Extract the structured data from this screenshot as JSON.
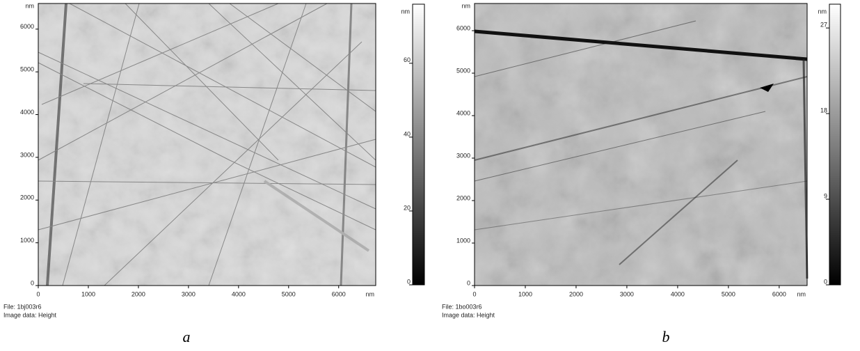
{
  "panels": [
    {
      "x_axis": {
        "unit": "nm",
        "lim": [
          0,
          6740
        ],
        "ticks": [
          0,
          1000,
          2000,
          3000,
          4000,
          5000,
          6000
        ]
      },
      "y_axis": {
        "unit": "nm",
        "lim": [
          0,
          6600
        ],
        "ticks": [
          0,
          1000,
          2000,
          3000,
          4000,
          5000,
          6000
        ]
      },
      "colorbar": {
        "unit": "nm",
        "lim": [
          0,
          76
        ],
        "ticks": [
          0,
          20,
          40,
          60
        ]
      },
      "file": "File: 1bj003r6",
      "image_data": "Image data: Height",
      "label": "a"
    },
    {
      "x_axis": {
        "unit": "nm",
        "lim": [
          0,
          6550
        ],
        "ticks": [
          0,
          1000,
          2000,
          3000,
          4000,
          5000,
          6000
        ]
      },
      "y_axis": {
        "unit": "nm",
        "lim": [
          0,
          6640
        ],
        "ticks": [
          0,
          1000,
          2000,
          3000,
          4000,
          5000,
          6000
        ]
      },
      "colorbar": {
        "unit": "nm",
        "lim": [
          0,
          29.5
        ],
        "ticks": [
          0,
          9,
          18,
          27
        ]
      },
      "file": "File: 1bo003r6",
      "image_data": "Image data: Height",
      "label": "b"
    }
  ]
}
